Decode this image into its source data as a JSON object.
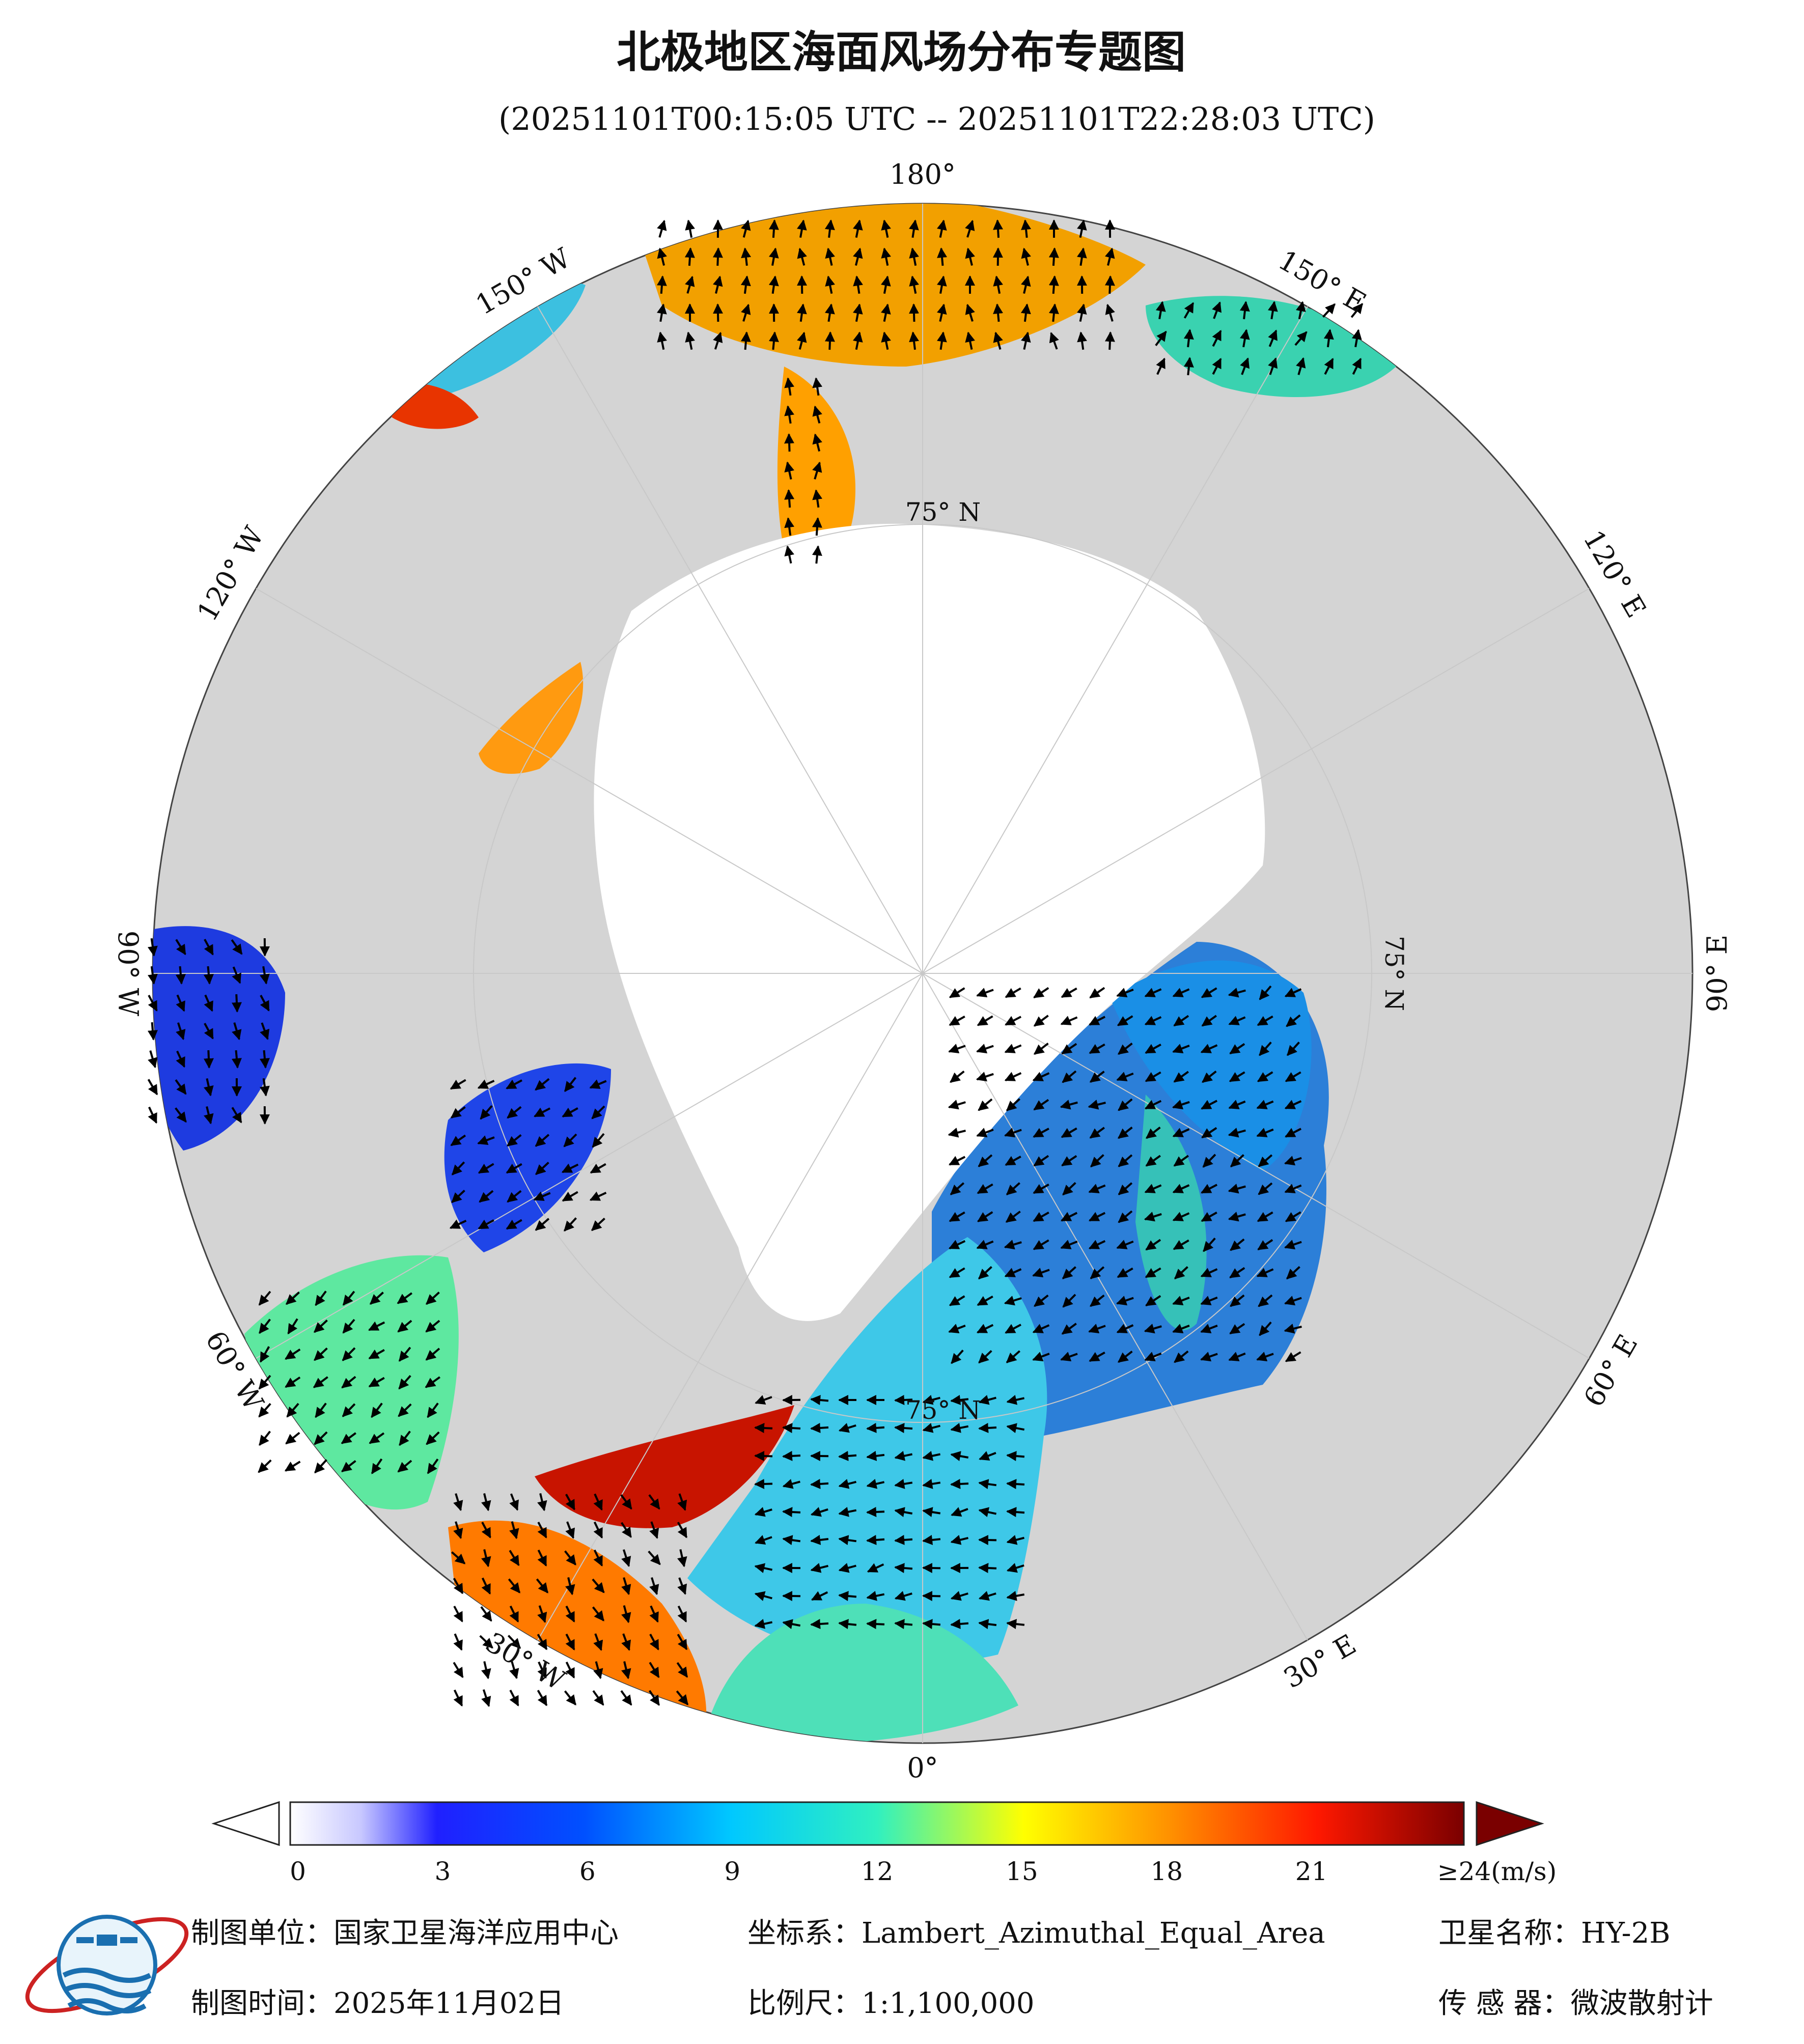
{
  "title": "北极地区海面风场分布专题图",
  "subtitle": "(20251101T00:15:05 UTC -- 20251101T22:28:03 UTC)",
  "map": {
    "projection_note": "Lambert_Azimuthal_Equal_Area",
    "longitude_labels": [
      {
        "text": "180°",
        "lon": 180
      },
      {
        "text": "150° E",
        "lon": 150
      },
      {
        "text": "120° E",
        "lon": 120
      },
      {
        "text": "90° E",
        "lon": 90
      },
      {
        "text": "60° E",
        "lon": 60
      },
      {
        "text": "30° E",
        "lon": 30
      },
      {
        "text": "0°",
        "lon": 0
      },
      {
        "text": "30° W",
        "lon": -30
      },
      {
        "text": "60° W",
        "lon": -60
      },
      {
        "text": "90° W",
        "lon": -90
      },
      {
        "text": "120° W",
        "lon": -120
      },
      {
        "text": "150° W",
        "lon": -150
      }
    ],
    "latitude_labels": [
      {
        "text": "75° N",
        "lat": 75,
        "lon": 180
      },
      {
        "text": "75° N",
        "lat": 75,
        "lon": 90
      },
      {
        "text": "75° N",
        "lat": 75,
        "lon": 0
      }
    ],
    "colors": {
      "land": "#d4d4d4",
      "ice": "#ffffff",
      "coast": "#111111",
      "grid": "#c8c8c8"
    }
  },
  "colorbar": {
    "ticks": [
      "0",
      "3",
      "6",
      "9",
      "12",
      "15",
      "18",
      "21",
      "≥24(m/s)"
    ],
    "tick_values": [
      0,
      3,
      6,
      9,
      12,
      15,
      18,
      21,
      24
    ],
    "range": [
      0,
      24
    ],
    "unit": "m/s",
    "colors": [
      "#ffffff",
      "#2020ff",
      "#0055ff",
      "#00c8ff",
      "#30f0c0",
      "#ffff00",
      "#ff9000",
      "#ff1800",
      "#7a0000"
    ]
  },
  "footer": {
    "unit": "制图单位：国家卫星海洋应用中心",
    "crs": "坐标系：Lambert_Azimuthal_Equal_Area",
    "satellite": "卫星名称：HY-2B",
    "date": "制图时间：2025年11月02日",
    "scale": "比例尺：1:1,100,000",
    "sensor": "传 感 器：微波散射计"
  }
}
